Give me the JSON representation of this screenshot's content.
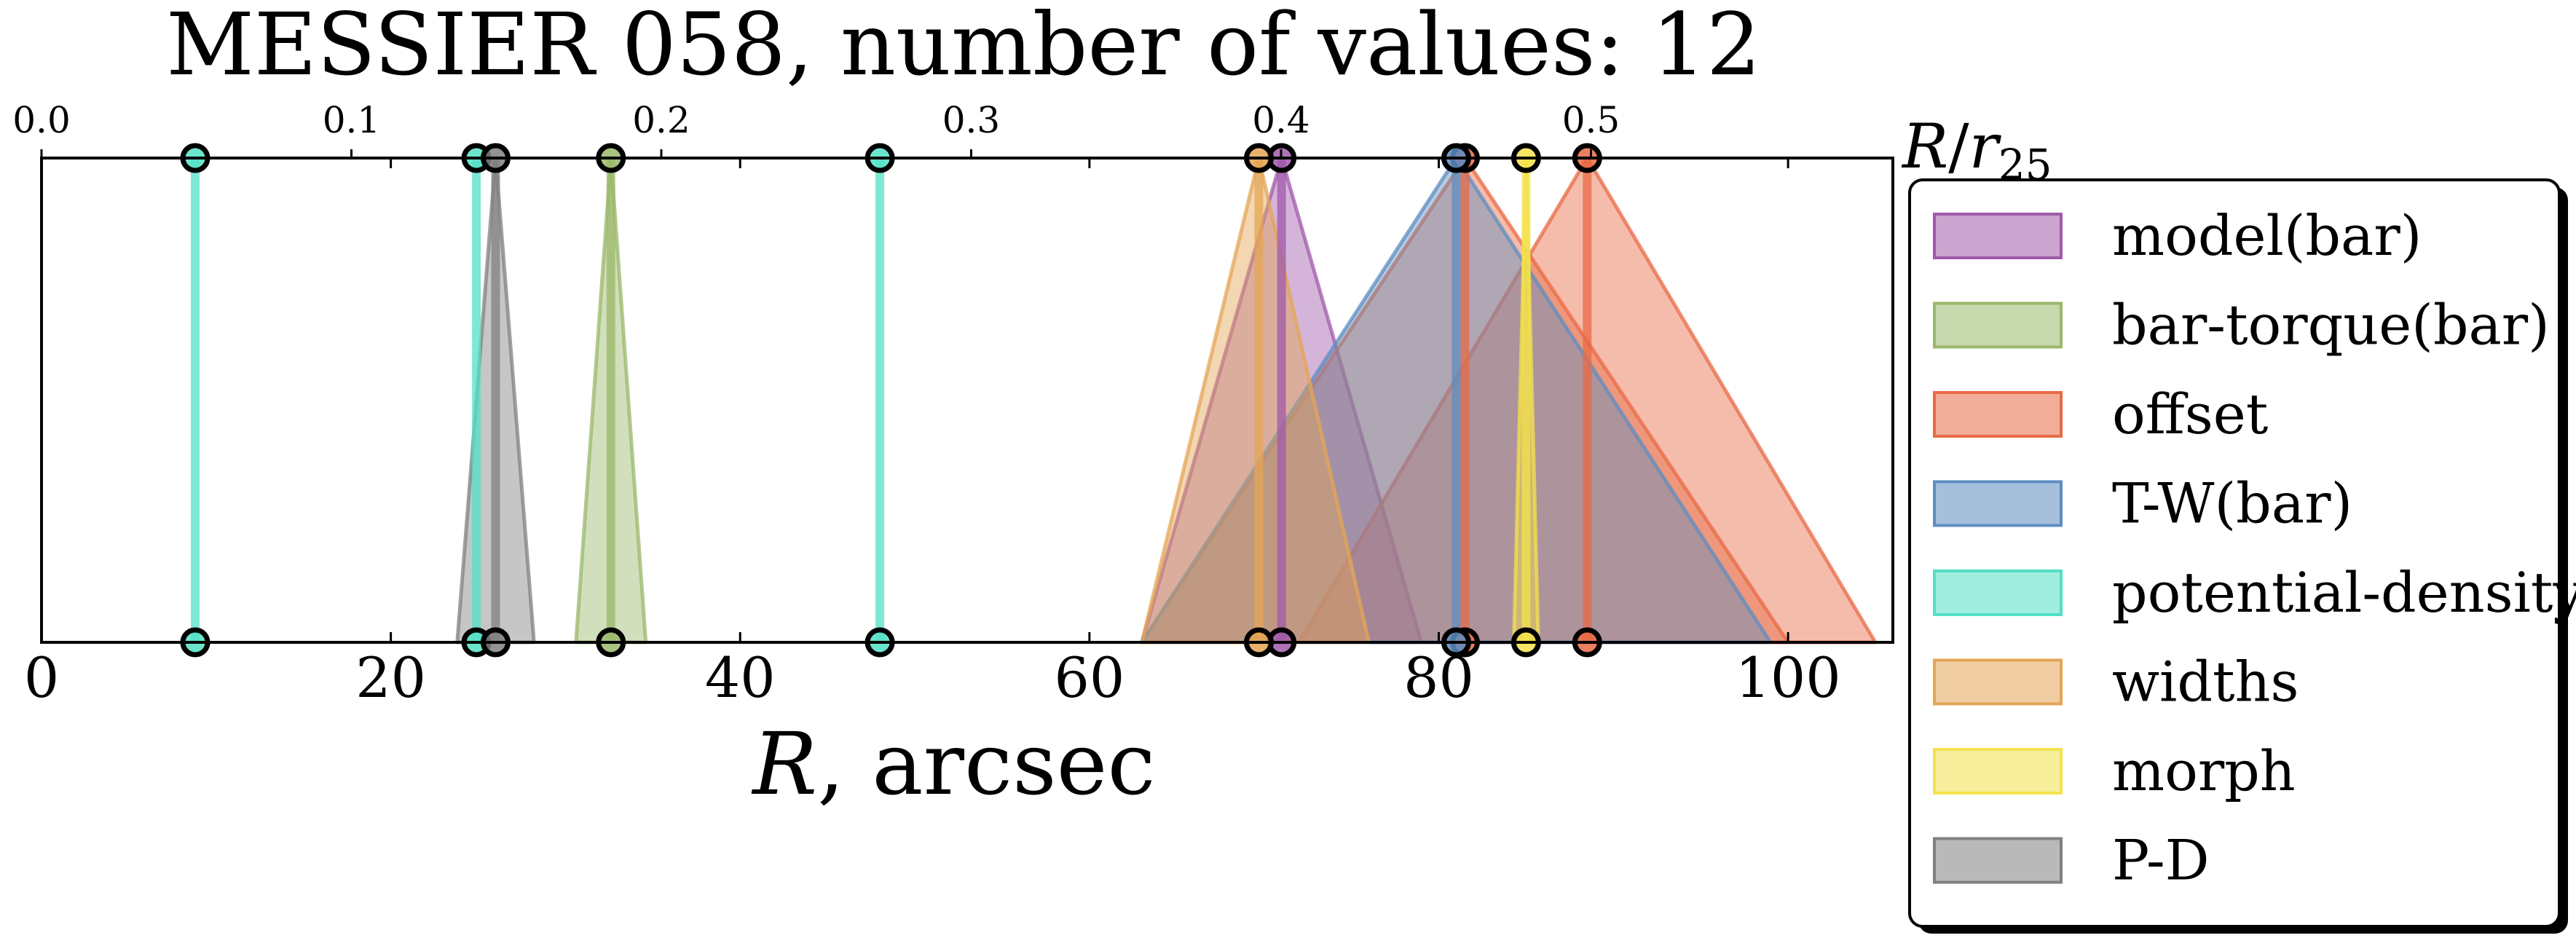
{
  "chart_data": {
    "type": "line",
    "title": "MESSIER 058, number of values: 12",
    "xlabel": "R, arcsec",
    "xlabel_top": "R/r25",
    "xlim": [
      0,
      106
    ],
    "xticks": [
      0,
      20,
      40,
      60,
      80,
      100
    ],
    "xticks_top": [
      0.0,
      0.1,
      0.2,
      0.3,
      0.4,
      0.5
    ],
    "x_top_per_r25": 0.005636,
    "grid": false,
    "legend_position": "right",
    "colors": {
      "model(bar)": "#a05aaa",
      "bar-torque(bar)": "#9ab86a",
      "offset": "#e86a45",
      "T-W(bar)": "#5d8dc0",
      "potential-density": "#52e0c4",
      "widths": "#e4a555",
      "morph": "#f3e24b",
      "P-D": "#808080"
    },
    "series": [
      {
        "name": "model(bar)",
        "values": [
          {
            "x": 71.0,
            "lo": 63.0,
            "hi": 79.0
          }
        ]
      },
      {
        "name": "bar-torque(bar)",
        "values": [
          {
            "x": 32.6,
            "lo": 30.6,
            "hi": 34.6
          }
        ]
      },
      {
        "name": "offset",
        "values": [
          {
            "x": 81.5,
            "lo": 63.0,
            "hi": 100.0
          },
          {
            "x": 88.5,
            "lo": 72.0,
            "hi": 105.0
          }
        ]
      },
      {
        "name": "T-W(bar)",
        "values": [
          {
            "x": 81.0,
            "lo": 63.0,
            "hi": 99.0
          }
        ]
      },
      {
        "name": "potential-density",
        "values": [
          {
            "x": 8.8,
            "lo": 8.8,
            "hi": 8.8
          },
          {
            "x": 24.9,
            "lo": 24.9,
            "hi": 24.9
          },
          {
            "x": 48.0,
            "lo": 48.0,
            "hi": 48.0
          }
        ]
      },
      {
        "name": "widths",
        "values": [
          {
            "x": 69.7,
            "lo": 63.0,
            "hi": 76.0
          }
        ]
      },
      {
        "name": "morph",
        "values": [
          {
            "x": 85.0,
            "lo": 84.3,
            "hi": 85.7
          }
        ]
      },
      {
        "name": "P-D",
        "values": [
          {
            "x": 26.0,
            "lo": 23.8,
            "hi": 28.2
          }
        ]
      }
    ],
    "legend": [
      "model(bar)",
      "bar-torque(bar)",
      "offset",
      "T-W(bar)",
      "potential-density",
      "widths",
      "morph",
      "P-D"
    ]
  }
}
